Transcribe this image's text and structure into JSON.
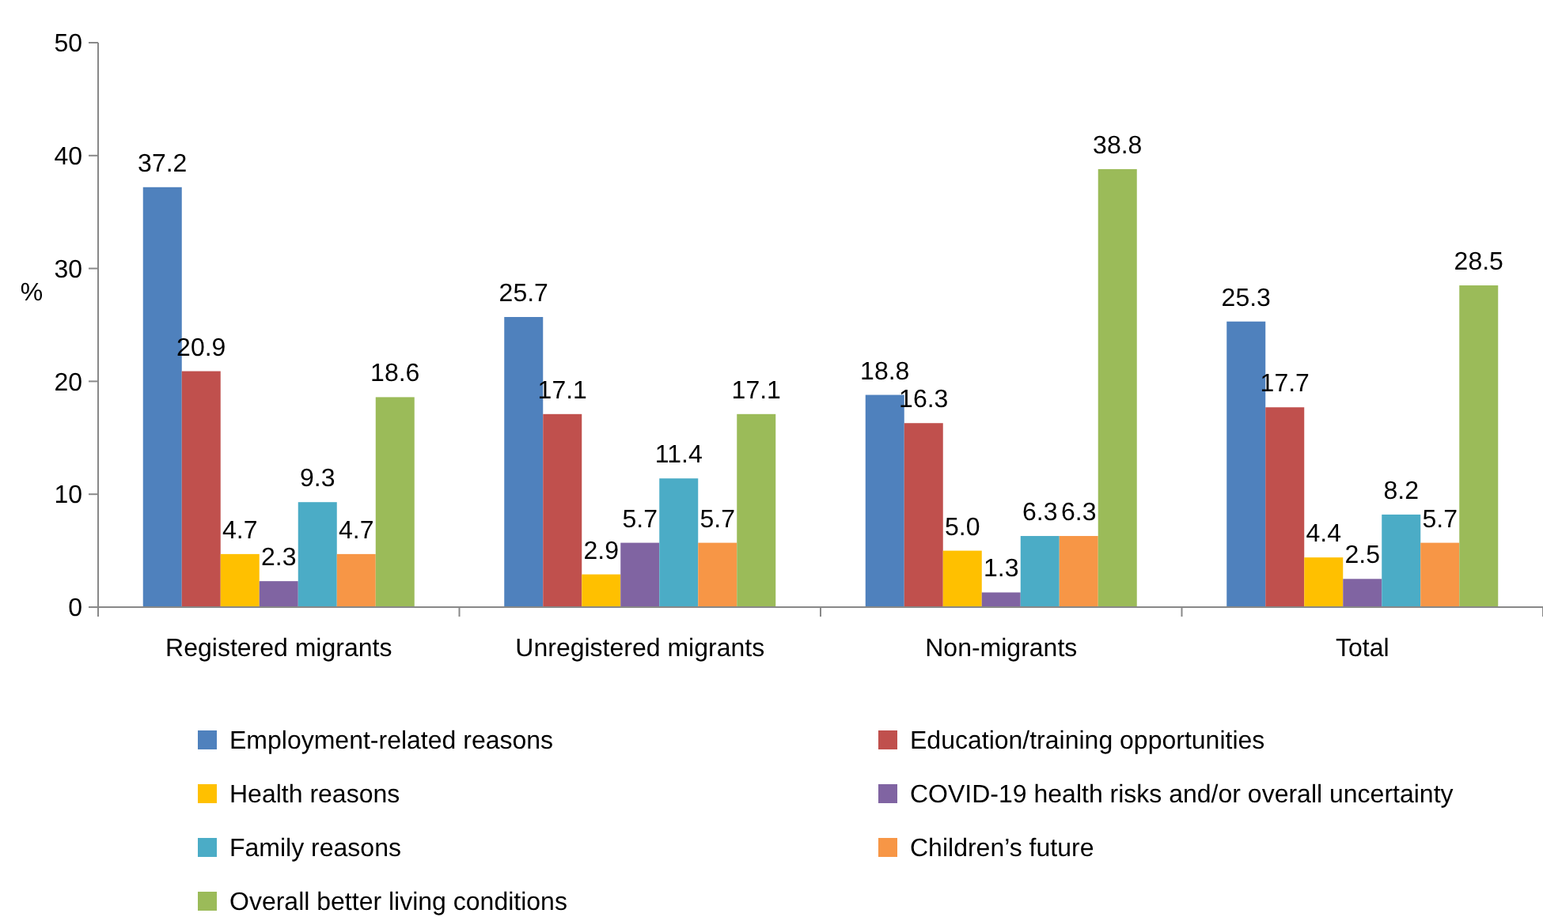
{
  "chart_data": {
    "type": "bar",
    "ylabel": "%",
    "categories": [
      "Registered migrants",
      "Unregistered migrants",
      "Non-migrants",
      "Total"
    ],
    "series": [
      {
        "name": "Employment-related reasons",
        "color": "#4f81bd",
        "values": [
          37.2,
          25.7,
          18.8,
          25.3
        ]
      },
      {
        "name": "Education/training opportunities",
        "color": "#c0504d",
        "values": [
          20.9,
          17.1,
          16.3,
          17.7
        ]
      },
      {
        "name": "Health reasons",
        "color": "#ffc000",
        "values": [
          4.7,
          2.9,
          5.0,
          4.4
        ]
      },
      {
        "name": "COVID-19 health risks and/or overall uncertainty",
        "color": "#8064a2",
        "values": [
          2.3,
          5.7,
          1.3,
          2.5
        ]
      },
      {
        "name": "Family reasons",
        "color": "#4bacc6",
        "values": [
          9.3,
          11.4,
          6.3,
          8.2
        ]
      },
      {
        "name": "Children’s future",
        "color": "#f79646",
        "values": [
          4.7,
          5.7,
          6.3,
          5.7
        ]
      },
      {
        "name": "Overall better living conditions",
        "color": "#9bbb59",
        "values": [
          18.6,
          17.1,
          38.8,
          28.5
        ]
      }
    ],
    "ylim": [
      0,
      50
    ],
    "yticks": [
      0,
      10,
      20,
      30,
      40,
      50
    ],
    "grid": false,
    "legend": "bottom",
    "value_labels": [
      [
        "37.2",
        "25.7",
        "18.8",
        "25.3"
      ],
      [
        "20.9",
        "17.1",
        "16.3",
        "17.7"
      ],
      [
        "4.7",
        "2.9",
        "5.0",
        "4.4"
      ],
      [
        "2.3",
        "5.7",
        "1.3",
        "2.5"
      ],
      [
        "9.3",
        "11.4",
        "6.3",
        "8.2"
      ],
      [
        "4.7",
        "5.7",
        "6.3",
        "5.7"
      ],
      [
        "18.6",
        "17.1",
        "38.8",
        "28.5"
      ]
    ]
  }
}
